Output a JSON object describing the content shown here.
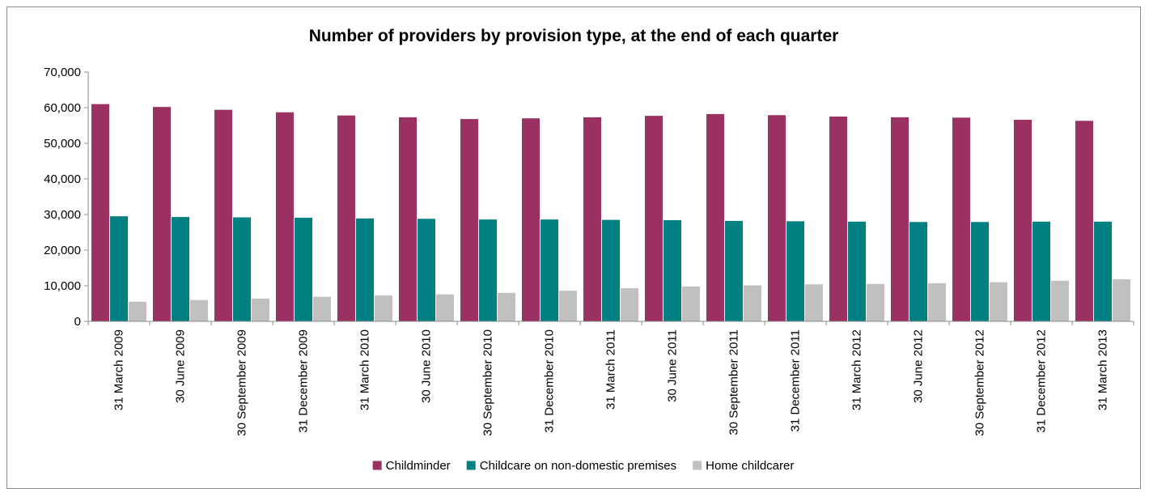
{
  "chart_data": {
    "type": "bar",
    "title": "Number of providers by provision type, at the end of each quarter",
    "xlabel": "",
    "ylabel": "",
    "ylim": [
      0,
      70000
    ],
    "y_ticks": [
      0,
      10000,
      20000,
      30000,
      40000,
      50000,
      60000,
      70000
    ],
    "y_tick_labels": [
      "0",
      "10,000",
      "20,000",
      "30,000",
      "40,000",
      "50,000",
      "60,000",
      "70,000"
    ],
    "grid": false,
    "legend_position": "bottom",
    "categories": [
      "31 March 2009",
      "30 June 2009",
      "30 September 2009",
      "31 December 2009",
      "31 March 2010",
      "30 June 2010",
      "30 September 2010",
      "31 December 2010",
      "31 March 2011",
      "30 June 2011",
      "30 September 2011",
      "31 December 2011",
      "31 March 2012",
      "30 June 2012",
      "30 September 2012",
      "31 December 2012",
      "31 March 2013"
    ],
    "series": [
      {
        "name": "Childminder",
        "color": "#9b3163",
        "values": [
          61000,
          60200,
          59400,
          58700,
          57800,
          57300,
          56800,
          57000,
          57300,
          57700,
          58200,
          57900,
          57500,
          57300,
          57200,
          56600,
          56300
        ]
      },
      {
        "name": "Childcare on non-domestic premises",
        "color": "#008080",
        "values": [
          29500,
          29300,
          29200,
          29100,
          28900,
          28800,
          28600,
          28600,
          28500,
          28400,
          28200,
          28100,
          28000,
          27900,
          27900,
          28000,
          28000
        ]
      },
      {
        "name": "Home childcarer",
        "color": "#c0c0c0",
        "values": [
          5500,
          6000,
          6400,
          6900,
          7300,
          7600,
          8000,
          8600,
          9300,
          9800,
          10100,
          10400,
          10500,
          10700,
          11000,
          11400,
          11800
        ]
      }
    ]
  }
}
